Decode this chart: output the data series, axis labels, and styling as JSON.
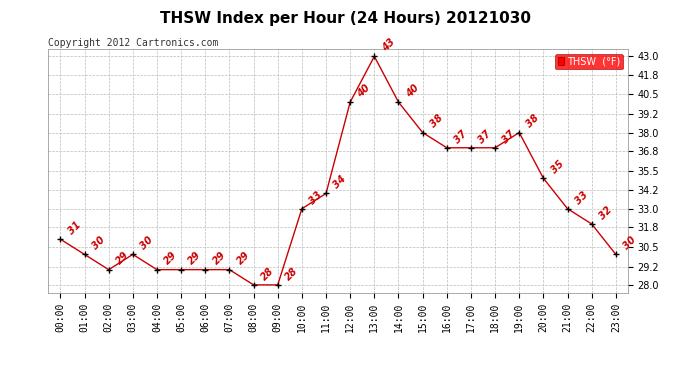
{
  "title": "THSW Index per Hour (24 Hours) 20121030",
  "copyright": "Copyright 2012 Cartronics.com",
  "legend_label": "THSW  (°F)",
  "hours": [
    0,
    1,
    2,
    3,
    4,
    5,
    6,
    7,
    8,
    9,
    10,
    11,
    12,
    13,
    14,
    15,
    16,
    17,
    18,
    19,
    20,
    21,
    22,
    23
  ],
  "hour_labels": [
    "00:00",
    "01:00",
    "02:00",
    "03:00",
    "04:00",
    "05:00",
    "06:00",
    "07:00",
    "08:00",
    "09:00",
    "10:00",
    "11:00",
    "12:00",
    "13:00",
    "14:00",
    "15:00",
    "16:00",
    "17:00",
    "18:00",
    "19:00",
    "20:00",
    "21:00",
    "22:00",
    "23:00"
  ],
  "values": [
    31,
    30,
    29,
    30,
    29,
    29,
    29,
    29,
    28,
    28,
    33,
    34,
    40,
    43,
    40,
    38,
    37,
    37,
    37,
    38,
    35,
    33,
    32,
    30
  ],
  "line_color": "#cc0000",
  "marker_color": "#000000",
  "label_color": "#cc0000",
  "background_color": "#ffffff",
  "grid_color": "#bbbbbb",
  "ylim": [
    27.5,
    43.5
  ],
  "yticks": [
    28.0,
    29.2,
    30.5,
    31.8,
    33.0,
    34.2,
    35.5,
    36.8,
    38.0,
    39.2,
    40.5,
    41.8,
    43.0
  ],
  "title_fontsize": 11,
  "label_fontsize": 7,
  "copyright_fontsize": 7,
  "tick_fontsize": 7
}
